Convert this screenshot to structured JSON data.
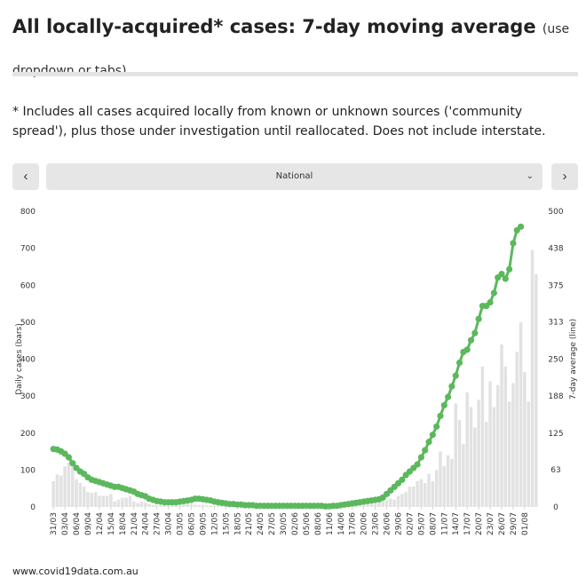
{
  "header": {
    "title": "All locally-acquired* cases: 7-day moving average",
    "subtitle": "(use dropdown or tabs)"
  },
  "note": "* Includes all cases acquired locally from known or unknown sources ('community spread'), plus those under investigation until reallocated. Does not include interstate.",
  "controls": {
    "prev_label": "‹",
    "next_label": "›",
    "selected_region": "National",
    "chevron": "⌄"
  },
  "footer": {
    "source": "www.covid19data.com.au"
  },
  "colors": {
    "line": "#5cb85c",
    "bars": "#e2e2e2",
    "axis_text": "#333333"
  },
  "chart_data": {
    "type": "bar",
    "title": "All locally-acquired* cases: 7-day moving average",
    "ylabel": "Daily cases (bars)",
    "y2label": "7-day average (line)",
    "ylim": [
      0,
      800
    ],
    "y2lim": [
      0,
      500
    ],
    "yticks": [
      0,
      100,
      200,
      300,
      400,
      500,
      600,
      700,
      800
    ],
    "y2ticks": [
      0,
      63,
      125,
      188,
      250,
      313,
      375,
      438,
      500
    ],
    "tick_labels": [
      "31/03",
      "03/04",
      "06/04",
      "09/04",
      "12/04",
      "15/04",
      "18/04",
      "21/04",
      "24/04",
      "27/04",
      "30/04",
      "03/05",
      "06/05",
      "09/05",
      "12/05",
      "15/05",
      "18/05",
      "21/05",
      "24/05",
      "27/05",
      "30/05",
      "02/06",
      "05/06",
      "08/06",
      "11/06",
      "14/06",
      "17/06",
      "20/06",
      "23/06",
      "26/06",
      "29/06",
      "02/07",
      "05/07",
      "08/07",
      "11/07",
      "14/07",
      "17/07",
      "20/07",
      "23/07",
      "26/07",
      "29/07",
      "01/08"
    ],
    "series": [
      {
        "name": "Daily cases",
        "kind": "bar",
        "values": [
          70,
          88,
          85,
          110,
          120,
          110,
          75,
          65,
          55,
          40,
          38,
          40,
          30,
          30,
          30,
          35,
          15,
          20,
          25,
          25,
          30,
          15,
          10,
          15,
          12,
          8,
          5,
          5,
          5,
          5,
          6,
          8,
          7,
          12,
          10,
          12,
          10,
          6,
          5,
          6,
          4,
          4,
          3,
          5,
          5,
          3,
          2,
          2,
          3,
          2,
          2,
          3,
          2,
          3,
          2,
          3,
          3,
          2,
          4,
          2,
          3,
          2,
          3,
          2,
          3,
          3,
          2,
          2,
          2,
          3,
          5,
          3,
          2,
          6,
          5,
          3,
          8,
          5,
          8,
          6,
          7,
          9,
          10,
          10,
          12,
          15,
          20,
          18,
          22,
          20,
          30,
          35,
          40,
          55,
          55,
          70,
          75,
          65,
          90,
          70,
          100,
          150,
          110,
          140,
          130,
          280,
          235,
          170,
          310,
          270,
          215,
          290,
          380,
          230,
          340,
          270,
          330,
          440,
          380,
          285,
          335,
          420,
          500,
          365,
          285,
          695,
          630
        ],
        "range_label": "31/03 - 01/08"
      },
      {
        "name": "7-day average",
        "kind": "line",
        "axis": "right",
        "values": [
          98,
          97,
          94,
          90,
          84,
          74,
          66,
          60,
          56,
          50,
          46,
          44,
          42,
          40,
          38,
          36,
          34,
          34,
          32,
          30,
          28,
          26,
          22,
          20,
          18,
          14,
          12,
          10,
          9,
          8,
          8,
          8,
          8,
          9,
          10,
          11,
          12,
          14,
          14,
          13,
          12,
          11,
          9,
          8,
          7,
          6,
          5,
          5,
          4,
          4,
          3,
          3,
          3,
          2,
          2,
          2,
          2,
          2,
          2,
          2,
          2,
          2,
          2,
          2,
          2,
          2,
          2,
          2,
          2,
          2,
          2,
          1,
          1,
          2,
          2,
          3,
          4,
          5,
          6,
          7,
          8,
          9,
          10,
          11,
          12,
          13,
          16,
          22,
          28,
          34,
          40,
          46,
          54,
          60,
          66,
          72,
          84,
          96,
          110,
          122,
          136,
          154,
          172,
          186,
          204,
          222,
          244,
          262,
          266,
          282,
          294,
          318,
          340,
          340,
          346,
          362,
          388,
          394,
          386,
          402,
          446,
          468,
          474
        ]
      }
    ]
  }
}
